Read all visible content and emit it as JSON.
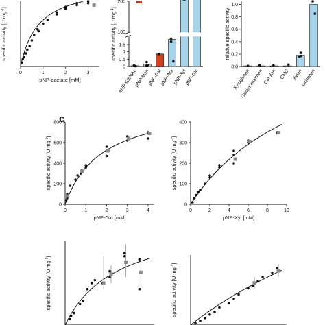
{
  "figure": {
    "panel_c_label": "c",
    "series_colors": {
      "points": "#111111",
      "mean": "#8a8a8a",
      "bar_light": "#a8d4ea",
      "bar_highlight": "#d0421e",
      "legend_swatch": "#c0391b"
    }
  },
  "chart_data": [
    {
      "id": "acetate",
      "type": "scatter",
      "xlabel": "pNP-acetate [mM]",
      "ylabel": "specific activity [U mg",
      "ylabel_sup": "-1",
      "ylabel_end": "]",
      "xlim": [
        0,
        3.5
      ],
      "ylim": [
        0,
        35
      ],
      "xticks": [
        0,
        1,
        2,
        3
      ],
      "yticks": [],
      "fit": {
        "vmax": 45,
        "km": 0.8
      },
      "points": [
        [
          0.05,
          2
        ],
        [
          0.1,
          4
        ],
        [
          0.15,
          5
        ],
        [
          0.2,
          7
        ],
        [
          0.25,
          7
        ],
        [
          0.3,
          9
        ],
        [
          0.4,
          11
        ],
        [
          0.5,
          14
        ],
        [
          0.6,
          17
        ],
        [
          0.75,
          20
        ],
        [
          0.8,
          19
        ],
        [
          1.0,
          23
        ],
        [
          1.2,
          25
        ],
        [
          1.6,
          28
        ],
        [
          1.6,
          29
        ],
        [
          2.0,
          31
        ],
        [
          2.0,
          32
        ],
        [
          2.5,
          33
        ],
        [
          2.5,
          34
        ],
        [
          3.0,
          34
        ],
        [
          3.0,
          35
        ]
      ],
      "means": [
        [
          3.2,
          33
        ]
      ]
    },
    {
      "id": "pnp_substrates",
      "type": "bar",
      "ylabel": "specific activity [U mg",
      "ylabel_sup": "-1",
      "ylabel_end": "]",
      "categories": [
        "pNP-GlcNAc",
        "pNP-Man",
        "pNP-Gal",
        "pNP-Ara",
        "pNP-Xyl",
        "pNP-Glc"
      ],
      "values": [
        0.05,
        0.15,
        0.85,
        1.85,
        1000,
        1000
      ],
      "broken_axis": {
        "lower": [
          0,
          2
        ],
        "upper": [
          100,
          200
        ]
      },
      "yticks_lower": [
        0,
        0.5,
        1,
        1.5
      ],
      "yticks_upper": [
        100,
        200
      ],
      "highlight_index": 2,
      "points": [
        [
          0,
          0.08
        ],
        [
          0,
          0.02
        ],
        [
          1,
          0.05
        ],
        [
          1,
          0.3
        ],
        [
          1,
          0.1
        ],
        [
          2,
          0.85
        ],
        [
          2,
          0.85
        ],
        [
          3,
          2.2
        ],
        [
          3,
          1.7
        ],
        [
          3,
          1.9
        ],
        [
          4,
          230
        ],
        [
          4,
          225
        ],
        [
          4,
          235
        ]
      ],
      "legend": [
        ""
      ]
    },
    {
      "id": "polysaccharides",
      "type": "bar",
      "ylabel": "relative specific activity",
      "categories": [
        "Xyloglucan",
        "Galactomannan",
        "Curdlan",
        "CMC",
        "Xylan",
        "Lichenan"
      ],
      "values": [
        0.01,
        0.01,
        0.01,
        0.01,
        0.18,
        1.0
      ],
      "ylim": [
        0,
        1.05
      ],
      "yticks": [
        0.0,
        0.2,
        0.4,
        0.6,
        0.8,
        1.0
      ],
      "points": [
        [
          0,
          0.01
        ],
        [
          1,
          0.02
        ],
        [
          2,
          0.02
        ],
        [
          3,
          0.03
        ],
        [
          4,
          0.22
        ],
        [
          4,
          0.16
        ],
        [
          4,
          0.17
        ],
        [
          5,
          0.85
        ],
        [
          5,
          1.05
        ]
      ]
    },
    {
      "id": "glc",
      "type": "scatter",
      "xlabel": "pNP-Glc [mM]",
      "ylabel": "specific activity [U mg",
      "ylabel_sup": "-1",
      "ylabel_end": "]",
      "xlim": [
        0,
        4.3
      ],
      "ylim": [
        0,
        800
      ],
      "xticks": [
        0,
        1,
        2,
        3,
        4
      ],
      "yticks": [
        0,
        200,
        400,
        600,
        800
      ],
      "fit": {
        "vmax": 1000,
        "km": 1.8
      },
      "points": [
        [
          0.05,
          40
        ],
        [
          0.1,
          60
        ],
        [
          0.1,
          100
        ],
        [
          0.25,
          180
        ],
        [
          0.5,
          240
        ],
        [
          0.6,
          280
        ],
        [
          0.75,
          300
        ],
        [
          0.8,
          330
        ],
        [
          1.0,
          360
        ],
        [
          1.0,
          380
        ],
        [
          2.0,
          560
        ],
        [
          2.0,
          470
        ],
        [
          2.0,
          520
        ],
        [
          3.0,
          660
        ],
        [
          3.0,
          620
        ],
        [
          4.0,
          690
        ],
        [
          4.0,
          700
        ],
        [
          4.0,
          640
        ]
      ],
      "means": [
        [
          0.05,
          80
        ],
        [
          0.75,
          320
        ],
        [
          2.0,
          520
        ],
        [
          3.0,
          640
        ],
        [
          4.0,
          690
        ]
      ]
    },
    {
      "id": "xyl",
      "type": "scatter",
      "xlabel": "pNP-Xyl [mM]",
      "ylabel": "specific activity [U mg",
      "ylabel_sup": "-1",
      "ylabel_end": "]",
      "xlim": [
        0,
        10
      ],
      "ylim": [
        0,
        400
      ],
      "xticks": [
        0,
        2,
        4,
        6,
        8,
        10
      ],
      "yticks": [
        0,
        100,
        200,
        300,
        400
      ],
      "fit": {
        "vmax": 900,
        "km": 12.5
      },
      "points": [
        [
          0.2,
          10
        ],
        [
          0.4,
          30
        ],
        [
          0.6,
          45
        ],
        [
          0.8,
          60
        ],
        [
          1.0,
          70
        ],
        [
          1.5,
          100
        ],
        [
          2.0,
          130
        ],
        [
          2.0,
          140
        ],
        [
          3.0,
          180
        ],
        [
          3.0,
          190
        ],
        [
          4.5,
          240
        ],
        [
          4.5,
          200
        ],
        [
          4.5,
          260
        ],
        [
          6.0,
          300
        ],
        [
          6.0,
          310
        ],
        [
          9.0,
          350
        ],
        [
          9.0,
          345
        ]
      ],
      "means": [
        [
          4.5,
          220
        ],
        [
          6.0,
          305
        ],
        [
          9.0,
          348
        ]
      ]
    },
    {
      "id": "bottom_left",
      "type": "scatter",
      "ylabel": "specific activity [U mg",
      "ylabel_sup": "-1",
      "ylabel_end": "]",
      "xlim": [
        0,
        6
      ],
      "ylim": [
        0,
        140
      ],
      "fit": {
        "vmax": 180,
        "km": 3.5
      },
      "points": [
        [
          0.3,
          10
        ],
        [
          0.4,
          15
        ],
        [
          0.6,
          20
        ],
        [
          1.0,
          35
        ],
        [
          1.2,
          40
        ],
        [
          1.5,
          60
        ],
        [
          1.8,
          70
        ],
        [
          2.0,
          75
        ],
        [
          2.5,
          70
        ],
        [
          3.0,
          80
        ],
        [
          3.0,
          90
        ],
        [
          4.0,
          115
        ],
        [
          4.0,
          120
        ],
        [
          5.0,
          60
        ],
        [
          5.0,
          110
        ]
      ],
      "means": [
        [
          2.5,
          70
        ],
        [
          3.0,
          85
        ],
        [
          4.0,
          105
        ],
        [
          5.0,
          88
        ]
      ],
      "errors": [
        [
          2.5,
          60,
          115
        ],
        [
          3.0,
          70,
          100
        ],
        [
          4.0,
          80,
          135
        ],
        [
          5.0,
          65,
          110
        ]
      ]
    },
    {
      "id": "bottom_right",
      "type": "scatter",
      "ylabel": "specific activity [U mg",
      "ylabel_sup": "-1",
      "ylabel_end": "]",
      "xlim": [
        0,
        10
      ],
      "ylim": [
        0,
        80
      ],
      "fit": {
        "vmax": 260,
        "km": 30
      },
      "points": [
        [
          0.5,
          2
        ],
        [
          1.0,
          5
        ],
        [
          1.5,
          8
        ],
        [
          2.0,
          12
        ],
        [
          2.5,
          15
        ],
        [
          3.0,
          20
        ],
        [
          4.0,
          25
        ],
        [
          4.5,
          30
        ],
        [
          5.0,
          35
        ],
        [
          6.0,
          42
        ],
        [
          6.5,
          45
        ],
        [
          7.0,
          50
        ],
        [
          7.5,
          55
        ],
        [
          8.5,
          60
        ],
        [
          9.0,
          65
        ]
      ],
      "means": [
        [
          6.5,
          48
        ],
        [
          9.0,
          62
        ]
      ],
      "errors": [
        [
          6.5,
          42,
          55
        ],
        [
          9.0,
          55,
          70
        ]
      ]
    }
  ]
}
